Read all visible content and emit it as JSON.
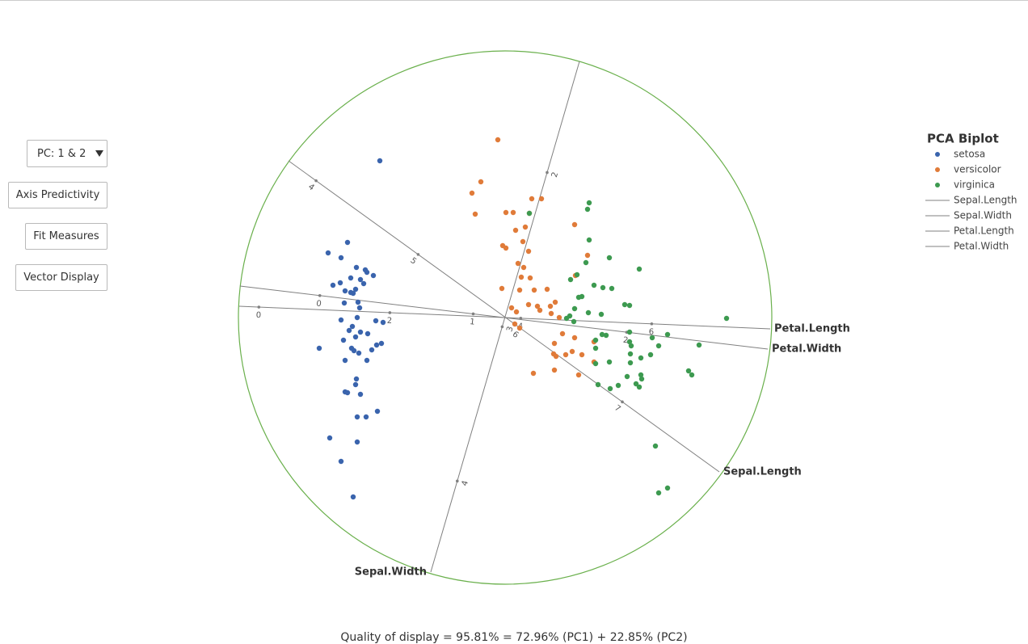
{
  "controls": {
    "pc_select": "PC: 1 & 2",
    "buttons": [
      "Axis Predictivity",
      "Fit Measures",
      "Vector Display"
    ]
  },
  "chart_data": {
    "type": "biplot",
    "title": "PCA Biplot",
    "footnote": "Quality of display = 95.81% = 72.96% (PC1) + 22.85% (PC2)",
    "xlim": [
      -3.3,
      3.3
    ],
    "ylim": [
      -3.3,
      3.3
    ],
    "circle_color": "#6ab04c",
    "axis_color": "#808080",
    "series": [
      {
        "name": "setosa",
        "color": "#3a64ad",
        "x": [
          -1.55,
          -1.95,
          -2.19,
          -2.03,
          -1.84,
          -1.73,
          -1.71,
          -1.63,
          -1.91,
          -1.79,
          -2.04,
          -1.75,
          -2.13,
          -1.98,
          -1.91,
          -1.88,
          -1.85,
          -1.99,
          -1.82,
          -1.8,
          -2.03,
          -1.83,
          -1.51,
          -1.6,
          -1.89,
          -1.93,
          -1.79,
          -1.7,
          -1.85,
          -2.0,
          -1.53,
          -1.59,
          -1.65,
          -1.9,
          -2.3,
          -1.87,
          -1.81,
          -1.71,
          -1.98,
          -1.84,
          -1.85,
          -1.98,
          -1.95,
          -1.79,
          -1.58,
          -1.83,
          -1.72,
          -2.17,
          -1.83,
          -2.03,
          -1.88
        ],
        "values": [
          1.94,
          0.93,
          0.8,
          0.74,
          0.62,
          0.59,
          0.56,
          0.52,
          0.49,
          0.47,
          0.43,
          0.42,
          0.4,
          0.33,
          0.31,
          0.3,
          0.35,
          0.18,
          0.19,
          0.12,
          -0.03,
          0.0,
          -0.06,
          -0.04,
          -0.11,
          -0.16,
          -0.18,
          -0.2,
          -0.24,
          -0.28,
          -0.32,
          -0.34,
          -0.4,
          -0.38,
          -0.38,
          -0.41,
          -0.44,
          -0.53,
          -0.53,
          -0.76,
          -0.83,
          -0.92,
          -0.93,
          -0.95,
          -1.16,
          -1.23,
          -1.23,
          -1.49,
          -1.54,
          -1.78,
          -2.22
        ]
      },
      {
        "name": "versicolor",
        "color": "#e07b39",
        "x": [
          -0.09,
          -0.3,
          -0.41,
          0.45,
          0.33,
          -0.37,
          0.01,
          0.1,
          0.3,
          0.86,
          0.25,
          0.13,
          0.22,
          -0.03,
          0.01,
          0.29,
          1.02,
          0.16,
          0.23,
          0.87,
          0.2,
          0.31,
          -0.04,
          0.18,
          0.36,
          0.52,
          0.62,
          0.29,
          0.08,
          0.4,
          0.43,
          0.56,
          0.14,
          0.57,
          0.67,
          0.71,
          0.61,
          0.86,
          1.1,
          0.83,
          0.6,
          0.63,
          0.95,
          0.12,
          0.91,
          0.61,
          0.35,
          0.75,
          1.1,
          0.18
        ],
        "values": [
          2.2,
          1.68,
          1.54,
          1.47,
          1.47,
          1.28,
          1.3,
          1.3,
          1.29,
          1.15,
          1.12,
          1.08,
          0.94,
          0.89,
          0.86,
          0.82,
          0.77,
          0.67,
          0.62,
          0.52,
          0.5,
          0.49,
          0.36,
          0.34,
          0.34,
          0.35,
          0.19,
          0.16,
          0.12,
          0.14,
          0.09,
          0.14,
          0.07,
          0.05,
          0.0,
          -0.2,
          -0.32,
          -0.25,
          -0.3,
          -0.42,
          -0.45,
          -0.48,
          -0.46,
          -0.08,
          -0.71,
          -0.65,
          -0.69,
          -0.46,
          -0.55,
          -0.13
        ]
      },
      {
        "name": "virginica",
        "color": "#3d9a50",
        "x": [
          1.04,
          0.3,
          1.02,
          1.04,
          1.0,
          1.29,
          0.89,
          0.81,
          1.66,
          1.1,
          1.21,
          1.32,
          0.95,
          0.91,
          1.48,
          1.54,
          0.86,
          0.8,
          0.76,
          1.03,
          1.19,
          0.85,
          2.74,
          2.01,
          1.82,
          1.54,
          1.2,
          1.25,
          1.12,
          1.54,
          1.56,
          2.4,
          1.9,
          1.12,
          1.55,
          1.68,
          1.8,
          1.55,
          1.29,
          1.12,
          2.27,
          2.31,
          1.68,
          1.69,
          1.51,
          1.62,
          1.66,
          1.4,
          1.15,
          1.3,
          1.86,
          2.01,
          1.9
        ],
        "values": [
          1.42,
          1.29,
          1.34,
          0.96,
          0.68,
          0.74,
          0.53,
          0.47,
          0.6,
          0.4,
          0.37,
          0.36,
          0.26,
          0.25,
          0.16,
          0.15,
          0.11,
          0.02,
          -0.01,
          0.06,
          0.04,
          -0.05,
          -0.01,
          -0.21,
          -0.25,
          -0.18,
          -0.21,
          -0.22,
          -0.28,
          -0.3,
          -0.35,
          -0.34,
          -0.35,
          -0.38,
          -0.45,
          -0.5,
          -0.46,
          -0.56,
          -0.55,
          -0.57,
          -0.66,
          -0.71,
          -0.71,
          -0.76,
          -0.73,
          -0.82,
          -0.86,
          -0.84,
          -0.83,
          -0.88,
          -1.59,
          -2.11,
          -2.17
        ]
      }
    ],
    "axes": [
      {
        "name": "Sepal.Length",
        "start": [
          -2.68,
          1.94
        ],
        "end": [
          2.65,
          -1.91
        ],
        "lim": [
          3.73,
          7.95
        ],
        "ticks": [
          4,
          5,
          6,
          7
        ]
      },
      {
        "name": "Sepal.Width",
        "start": [
          0.92,
          3.17
        ],
        "end": [
          -0.92,
          -3.15
        ],
        "lim": [
          1.28,
          4.59
        ],
        "ticks": [
          2,
          3,
          4
        ]
      },
      {
        "name": "Petal.Length",
        "start": [
          -3.29,
          0.14
        ],
        "end": [
          3.28,
          -0.14
        ],
        "lim": [
          -0.3,
          7.81
        ],
        "ticks": [
          0,
          2,
          4,
          6
        ]
      },
      {
        "name": "Petal.Width",
        "start": [
          -3.28,
          0.39
        ],
        "end": [
          3.25,
          -0.39
        ],
        "lim": [
          -0.52,
          2.92
        ],
        "ticks": [
          0,
          1,
          2
        ]
      }
    ]
  }
}
